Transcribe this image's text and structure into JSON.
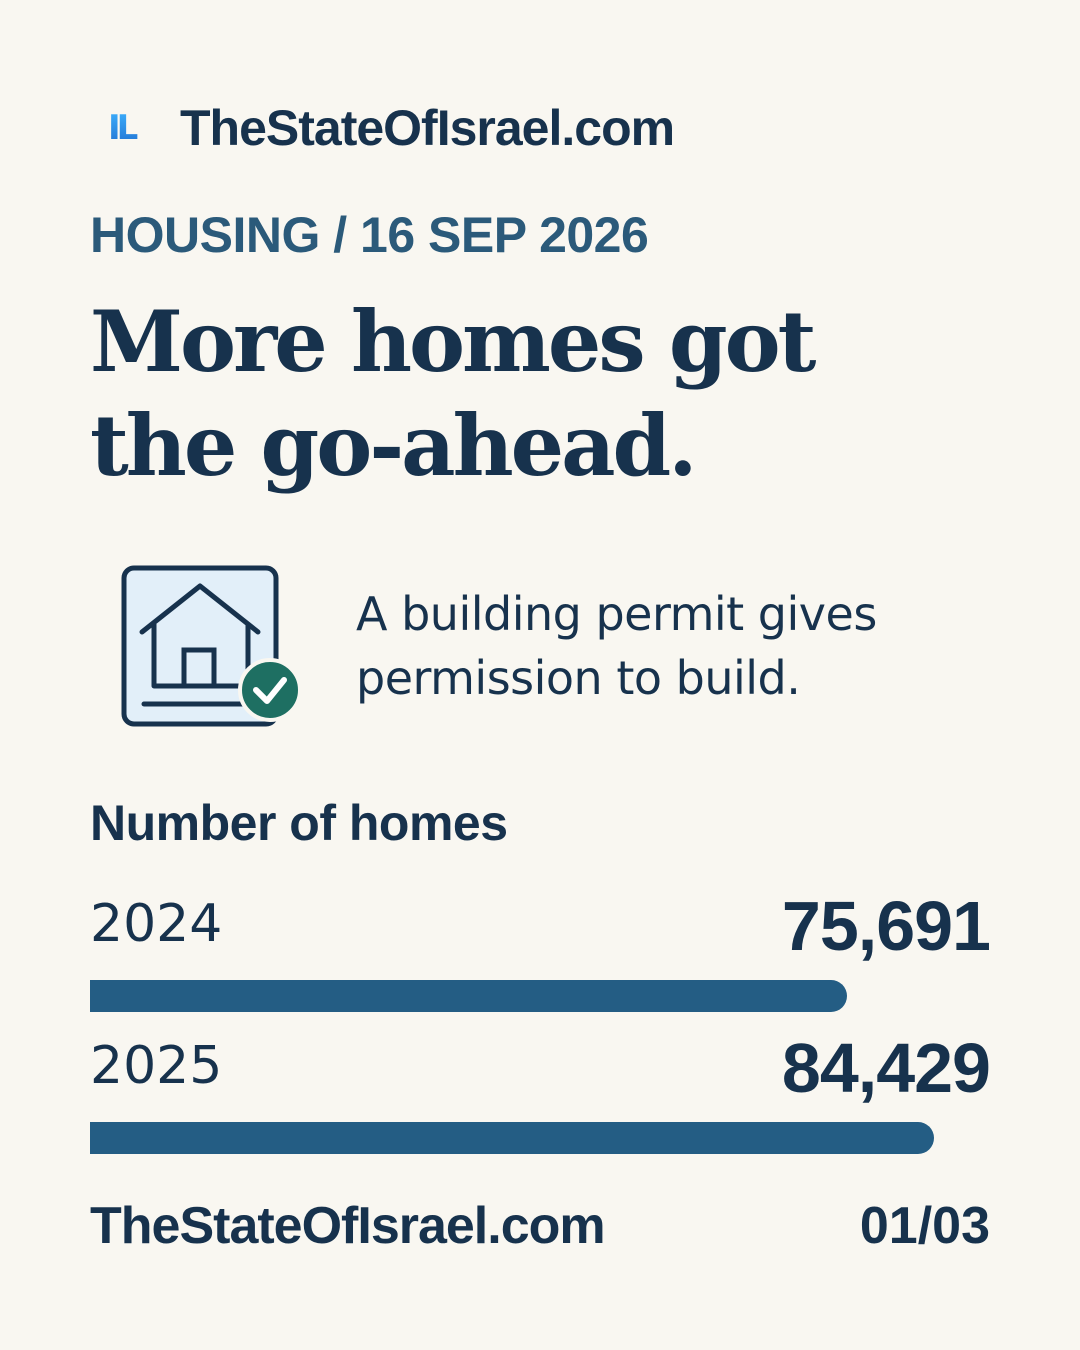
{
  "brand": {
    "logo_text": "IL",
    "name": "TheStateOfIsrael.com",
    "accent_color": "#2a8fe6"
  },
  "kicker": "HOUSING / 16 SEP 2026",
  "headline": {
    "line1": "More homes got",
    "line2": "the go-ahead."
  },
  "definition": {
    "icon": "house-permit-check-icon",
    "line1": "A building permit gives",
    "line2": "permission to build."
  },
  "chart_data": {
    "type": "bar",
    "title": "Number of homes",
    "categories": [
      "2024",
      "2025"
    ],
    "values": [
      75691,
      84429
    ],
    "value_labels": [
      "75,691",
      "84,429"
    ],
    "bar_color": "#245d84",
    "xlim": [
      0,
      90000
    ]
  },
  "footer": {
    "brand": "TheStateOfIsrael.com",
    "page": "01/03"
  }
}
